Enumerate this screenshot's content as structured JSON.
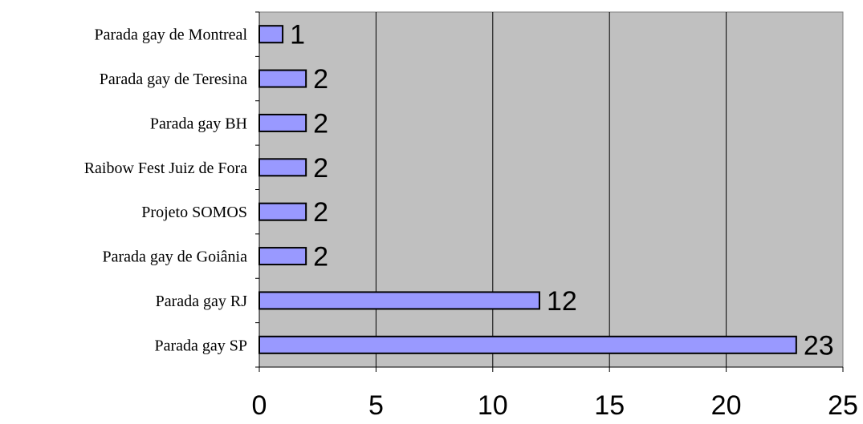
{
  "chart_data": {
    "type": "bar",
    "orientation": "horizontal",
    "categories": [
      "Parada gay de Montreal",
      "Parada gay de Teresina",
      "Parada gay BH",
      "Raibow Fest Juiz de Fora",
      "Projeto SOMOS",
      "Parada gay de Goiânia",
      "Parada gay RJ",
      "Parada gay SP"
    ],
    "values": [
      1,
      2,
      2,
      2,
      2,
      2,
      12,
      23
    ],
    "xlim": [
      0,
      25
    ],
    "xticks": [
      0,
      5,
      10,
      15,
      20,
      25
    ],
    "data_labels": true,
    "grid": "vertical",
    "legend": "none",
    "colors": {
      "plot_background": "#c0c0c0",
      "bar_fill": "#9999ff",
      "bar_stroke": "#000000",
      "gridline": "#000000"
    }
  }
}
